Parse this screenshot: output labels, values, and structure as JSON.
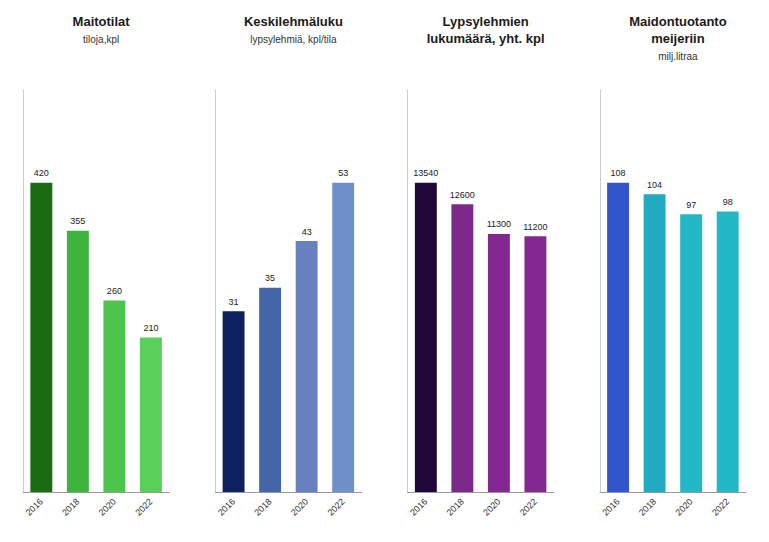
{
  "chart_data": [
    {
      "type": "bar",
      "title": "Maitotilat",
      "subtitle": "tiloja,kpl",
      "categories": [
        "2016",
        "2018",
        "2020",
        "2022"
      ],
      "values": [
        420,
        355,
        260,
        210
      ],
      "colors": [
        "#1a6b12",
        "#3db53d",
        "#4dc44d",
        "#5ad05a"
      ],
      "ylim": [
        0,
        546
      ],
      "data_labels": true,
      "grid": false,
      "tick_labels": "x"
    },
    {
      "type": "bar",
      "title": "Keskilehmäluku",
      "subtitle": "lypsylehmiä, kpl/tila",
      "categories": [
        "2016",
        "2018",
        "2020",
        "2022"
      ],
      "values": [
        31,
        35,
        43,
        53
      ],
      "colors": [
        "#0d2060",
        "#4466a8",
        "#6680c0",
        "#7090cc"
      ],
      "ylim": [
        0,
        68.9
      ],
      "data_labels": true,
      "grid": false,
      "tick_labels": "x"
    },
    {
      "type": "bar",
      "title": "Lypsylehmien\nlukumäärä, yht. kpl",
      "categories": [
        "2016",
        "2018",
        "2020",
        "2022"
      ],
      "values": [
        13540,
        12600,
        11300,
        11200
      ],
      "colors": [
        "#200838",
        "#7b2a8a",
        "#832890",
        "#832890"
      ],
      "ylim": [
        0,
        17602
      ],
      "data_labels": true,
      "grid": false,
      "tick_labels": "x"
    },
    {
      "type": "bar",
      "title": "Maidontuotanto\nmeijeriin",
      "subtitle": "milj.litraa",
      "categories": [
        "2016",
        "2018",
        "2020",
        "2022"
      ],
      "values": [
        108,
        104,
        97,
        98
      ],
      "colors": [
        "#3355cc",
        "#22aac0",
        "#22b8c8",
        "#22b8c8"
      ],
      "ylim": [
        0,
        140.4
      ],
      "data_labels": true,
      "grid": false,
      "tick_labels": "x"
    }
  ]
}
